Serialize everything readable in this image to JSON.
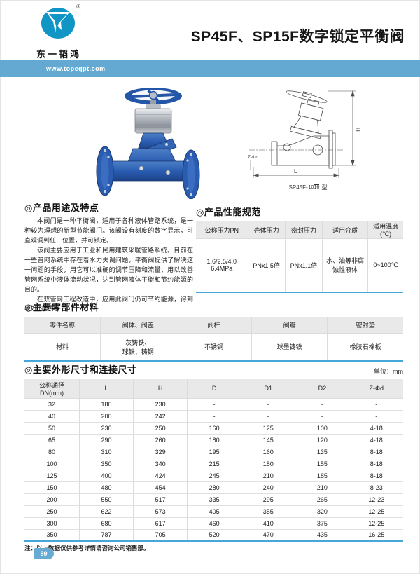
{
  "header": {
    "brand_name": "东一韬鸿",
    "registered_mark": "®",
    "title": "SP45F、SP15F数字锁定平衡阀",
    "website": "www.topeqpt.com"
  },
  "drawing": {
    "caption_prefix": "SP45F-",
    "caption_numerator": "10",
    "caption_denominator": "16",
    "caption_suffix": "型",
    "label_h": "H",
    "label_l": "L",
    "label_zd": "Z-Φd"
  },
  "features": {
    "heading": "◎产品用途及特点",
    "paragraphs": [
      "本阀门是一种平衡阀，适用于各种液体管路系统，是一种较为理想的新型节能阀门。该阀设有刻度的数字显示，可直观调到任一位置，并可锁定。",
      "该阀主要应用于工业和民用建筑采暖管路系统。目前在一些管网系统中存在着水力失调问题，平衡阀提供了解决这一问题的手段，用它可以准确的调节压降和流量，用以改善管网系统中液体流动状况，达到管网液体平衡和节约能源的目的。",
      "在双管网工程改造中，应用此阀门仍可节约能源，得到较好的效果。"
    ]
  },
  "performance": {
    "heading": "◎产品性能规范",
    "headers": [
      "公称压力PN",
      "壳体压力",
      "密封压力",
      "适用介质",
      "适用温度(℃)"
    ],
    "rows": [
      [
        "1.6/2.5/4.0\n6.4MPa",
        "PNx1.5倍",
        "PNx1.1倍",
        "水、油等非腐蚀性液体",
        "0~100℃"
      ]
    ]
  },
  "materials": {
    "heading": "◎主要零部件材料",
    "headers": [
      "零件名称",
      "阀体、阀盖",
      "阀杆",
      "阀瓣",
      "密封垫"
    ],
    "rows": [
      [
        "材料",
        "灰铸铁、\n球铁、铸钢",
        "不锈钢",
        "球墨铸铁",
        "橡胶石棉板"
      ]
    ]
  },
  "dimensions": {
    "heading": "◎主要外形尺寸和连接尺寸",
    "unit": "单位：mm",
    "headers": [
      "公称通径\nDN(mm)",
      "L",
      "H",
      "D",
      "D1",
      "D2",
      "Z-Φd"
    ],
    "rows": [
      [
        "32",
        "180",
        "230",
        "-",
        "-",
        "-",
        "-"
      ],
      [
        "40",
        "200",
        "242",
        "-",
        "-",
        "-",
        "-"
      ],
      [
        "50",
        "230",
        "250",
        "160",
        "125",
        "100",
        "4-18"
      ],
      [
        "65",
        "290",
        "260",
        "180",
        "145",
        "120",
        "4-18"
      ],
      [
        "80",
        "310",
        "329",
        "195",
        "160",
        "135",
        "8-18"
      ],
      [
        "100",
        "350",
        "340",
        "215",
        "180",
        "155",
        "8-18"
      ],
      [
        "125",
        "400",
        "424",
        "245",
        "210",
        "185",
        "8-18"
      ],
      [
        "150",
        "480",
        "454",
        "280",
        "240",
        "210",
        "8-23"
      ],
      [
        "200",
        "550",
        "517",
        "335",
        "295",
        "265",
        "12-23"
      ],
      [
        "250",
        "622",
        "573",
        "405",
        "355",
        "320",
        "12-25"
      ],
      [
        "300",
        "680",
        "617",
        "460",
        "410",
        "375",
        "12-25"
      ],
      [
        "350",
        "787",
        "705",
        "520",
        "470",
        "435",
        "16-25"
      ]
    ],
    "note": "注：以上数据仅供参考详情请咨询公司销售部。"
  },
  "footer": {
    "page_number": "89"
  },
  "colors": {
    "banner_blue": "#63a9d1",
    "table_accent_blue": "#45a7da",
    "header_gray": "#e9e9e9",
    "logo_teal": "#1095c5",
    "valve_blue": "#2a5db1"
  }
}
